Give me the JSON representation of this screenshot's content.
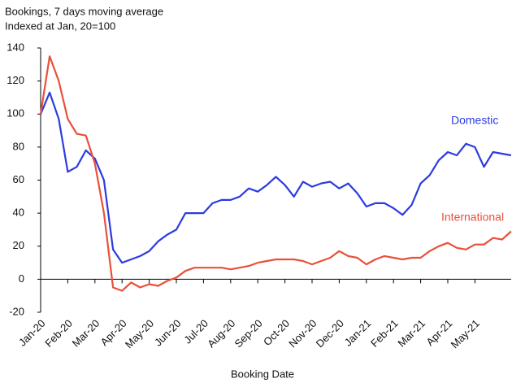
{
  "chart_data": {
    "type": "line",
    "title": "Bookings, 7 days moving average",
    "subtitle": "Indexed at Jan, 20=100",
    "x_label": "Booking Date",
    "categories": [
      "Jan-20",
      null,
      null,
      "Feb-20",
      null,
      null,
      "Mar-20",
      null,
      null,
      "Apr-20",
      null,
      null,
      "May-20",
      null,
      null,
      "Jun-20",
      null,
      null,
      "Jul-20",
      null,
      null,
      "Aug-20",
      null,
      null,
      "Sep-20",
      null,
      null,
      "Oct-20",
      null,
      null,
      "Nov-20",
      null,
      null,
      "Dec-20",
      null,
      null,
      "Jan-21",
      null,
      null,
      "Feb-21",
      null,
      null,
      "Mar-21",
      null,
      null,
      "Apr-21",
      null,
      null,
      "May-21",
      null,
      null,
      null,
      null
    ],
    "series": [
      {
        "name": "Domestic",
        "color": "#2b3be0",
        "values": [
          100,
          113,
          97,
          65,
          68,
          78,
          73,
          60,
          18,
          10,
          12,
          14,
          17,
          23,
          27,
          30,
          40,
          40,
          40,
          46,
          48,
          48,
          50,
          55,
          53,
          57,
          62,
          57,
          50,
          59,
          56,
          58,
          59,
          55,
          58,
          52,
          44,
          46,
          46,
          43,
          39,
          45,
          58,
          63,
          72,
          77,
          75,
          82,
          80,
          68,
          77,
          76,
          75
        ]
      },
      {
        "name": "International",
        "color": "#e8503a",
        "values": [
          100,
          135,
          120,
          97,
          88,
          87,
          70,
          40,
          -5,
          -7,
          -2,
          -5,
          -3,
          -4,
          -1,
          1,
          5,
          7,
          7,
          7,
          7,
          6,
          7,
          8,
          10,
          11,
          12,
          12,
          12,
          11,
          9,
          11,
          13,
          17,
          14,
          13,
          9,
          12,
          14,
          13,
          12,
          13,
          13,
          17,
          20,
          22,
          19,
          18,
          21,
          21,
          25,
          24,
          29
        ]
      }
    ],
    "ylim": [
      -20,
      140
    ],
    "yticks": [
      -20,
      0,
      20,
      40,
      60,
      80,
      100,
      120,
      140
    ],
    "grid": false
  }
}
